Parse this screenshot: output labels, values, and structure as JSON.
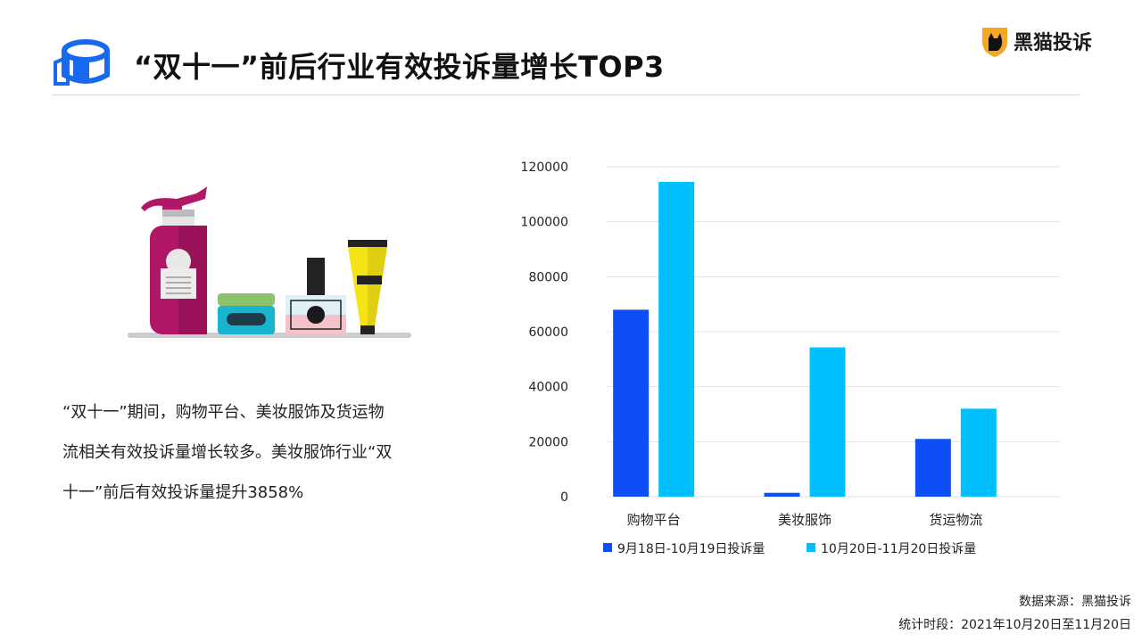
{
  "header": {
    "title": "“双十一”前后行业有效投诉量增长TOP3",
    "icon": "box-chart-icon"
  },
  "brand": {
    "name": "黑猫投诉",
    "logo": "black-cat-shield-icon"
  },
  "illustration": {
    "icon": "cosmetics-products-icon"
  },
  "description": {
    "lines": [
      "“双十一”期间，购物平台、美妆服饰及货运物",
      "流相关有效投诉量增长较多。美妆服饰行业“双",
      "十一”前后有效投诉量提升3858%"
    ]
  },
  "footer": {
    "source": "数据来源：黑猫投诉",
    "period": "统计时段：2021年10月20日至11月20日"
  },
  "colors": {
    "series1": "#0d4ff5",
    "series2": "#00bfff",
    "grid": "#e3e3e3"
  },
  "chart_data": {
    "type": "bar",
    "categories": [
      "购物平台",
      "美妆服饰",
      "货运物流"
    ],
    "series": [
      {
        "name": "9月18日-10月19日投诉量",
        "values": [
          68000,
          1400,
          21000
        ]
      },
      {
        "name": "10月20日-11月20日投诉量",
        "values": [
          114500,
          54300,
          32000
        ]
      }
    ],
    "ylim": [
      0,
      120000
    ],
    "yticks": [
      "0",
      "20000",
      "40000",
      "60000",
      "80000",
      "100000",
      "120000"
    ],
    "grid": true,
    "legend": "bottom"
  }
}
